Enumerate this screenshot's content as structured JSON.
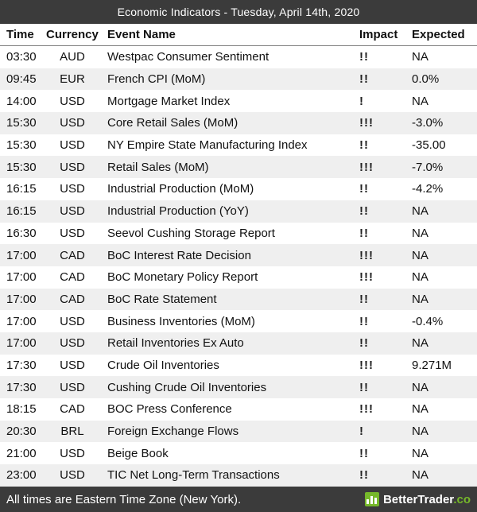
{
  "title_bar": {
    "title": "Economic Indicators - Tuesday, April 14th, 2020"
  },
  "table": {
    "columns": [
      "Time",
      "Currency",
      "Event Name",
      "Impact",
      "Expected"
    ],
    "rows": [
      {
        "time": "03:30",
        "currency": "AUD",
        "event": "Westpac Consumer Sentiment",
        "impact": "!!",
        "expected": "NA"
      },
      {
        "time": "09:45",
        "currency": "EUR",
        "event": "French CPI (MoM)",
        "impact": "!!",
        "expected": "0.0%"
      },
      {
        "time": "14:00",
        "currency": "USD",
        "event": "Mortgage Market Index",
        "impact": "!",
        "expected": "NA"
      },
      {
        "time": "15:30",
        "currency": "USD",
        "event": "Core Retail Sales (MoM)",
        "impact": "!!!",
        "expected": "-3.0%"
      },
      {
        "time": "15:30",
        "currency": "USD",
        "event": "NY Empire State Manufacturing Index",
        "impact": "!!",
        "expected": "-35.00"
      },
      {
        "time": "15:30",
        "currency": "USD",
        "event": "Retail Sales (MoM)",
        "impact": "!!!",
        "expected": "-7.0%"
      },
      {
        "time": "16:15",
        "currency": "USD",
        "event": "Industrial Production (MoM)",
        "impact": "!!",
        "expected": "-4.2%"
      },
      {
        "time": "16:15",
        "currency": "USD",
        "event": "Industrial Production (YoY)",
        "impact": "!!",
        "expected": "NA"
      },
      {
        "time": "16:30",
        "currency": "USD",
        "event": "Seevol Cushing Storage Report",
        "impact": "!!",
        "expected": "NA"
      },
      {
        "time": "17:00",
        "currency": "CAD",
        "event": "BoC Interest Rate Decision",
        "impact": "!!!",
        "expected": "NA"
      },
      {
        "time": "17:00",
        "currency": "CAD",
        "event": "BoC Monetary Policy Report",
        "impact": "!!!",
        "expected": "NA"
      },
      {
        "time": "17:00",
        "currency": "CAD",
        "event": "BoC Rate Statement",
        "impact": "!!",
        "expected": "NA"
      },
      {
        "time": "17:00",
        "currency": "USD",
        "event": "Business Inventories (MoM)",
        "impact": "!!",
        "expected": "-0.4%"
      },
      {
        "time": "17:00",
        "currency": "USD",
        "event": "Retail Inventories Ex Auto",
        "impact": "!!",
        "expected": "NA"
      },
      {
        "time": "17:30",
        "currency": "USD",
        "event": "Crude Oil Inventories",
        "impact": "!!!",
        "expected": "9.271M"
      },
      {
        "time": "17:30",
        "currency": "USD",
        "event": "Cushing Crude Oil Inventories",
        "impact": "!!",
        "expected": "NA"
      },
      {
        "time": "18:15",
        "currency": "CAD",
        "event": "BOC Press Conference",
        "impact": "!!!",
        "expected": "NA"
      },
      {
        "time": "20:30",
        "currency": "BRL",
        "event": "Foreign Exchange Flows",
        "impact": "!",
        "expected": "NA"
      },
      {
        "time": "21:00",
        "currency": "USD",
        "event": "Beige Book",
        "impact": "!!",
        "expected": "NA"
      },
      {
        "time": "23:00",
        "currency": "USD",
        "event": "TIC Net Long-Term Transactions",
        "impact": "!!",
        "expected": "NA"
      }
    ]
  },
  "footer": {
    "note": "All times are Eastern Time Zone (New York).",
    "brand_name": "BetterTrader",
    "brand_tld": ".co"
  },
  "colors": {
    "bar_background": "#3b3b3b",
    "row_alternate": "#efefef",
    "brand_green": "#76b82a",
    "text": "#111111"
  }
}
